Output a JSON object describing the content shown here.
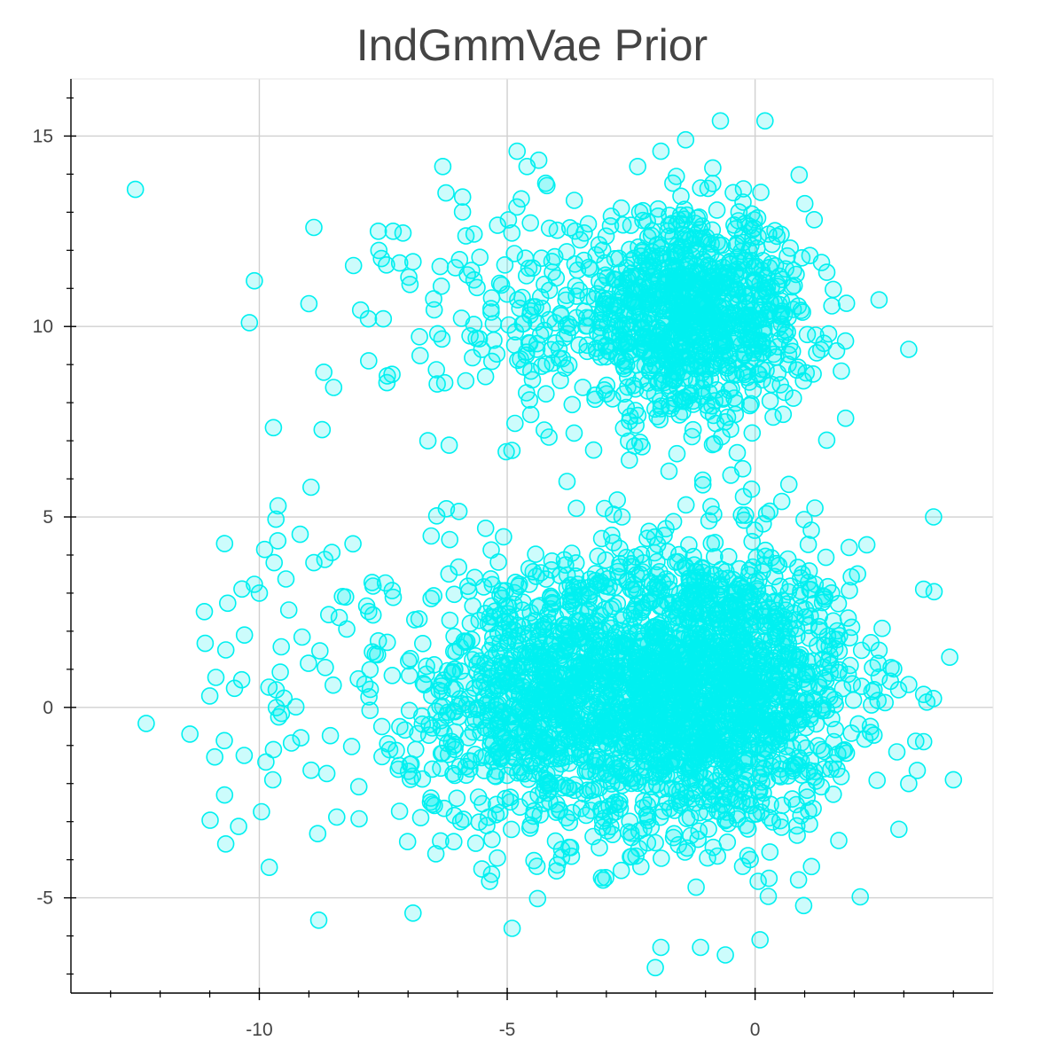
{
  "chart_data": {
    "type": "scatter",
    "title": "IndGmmVae Prior",
    "xlabel": "",
    "ylabel": "",
    "xlim": [
      -13.8,
      4.8
    ],
    "ylim": [
      -7.5,
      16.5
    ],
    "x_ticks": [
      -10,
      -5,
      0
    ],
    "y_ticks": [
      -5,
      0,
      5,
      10,
      15
    ],
    "x_tick_labels": [
      "-10",
      "-5",
      "0"
    ],
    "y_tick_labels": [
      "-5",
      "0",
      "5",
      "10",
      "15"
    ],
    "grid": true,
    "marker": {
      "shape": "circle",
      "fill": "#00f0f0",
      "fill_opacity": 0.2,
      "stroke": "#00f0f0"
    },
    "clusters": [
      {
        "center": [
          -1.2,
          0.5
        ],
        "std": [
          1.6,
          1.9
        ],
        "count": 1900
      },
      {
        "center": [
          -4.5,
          0.2
        ],
        "std": [
          1.3,
          1.8
        ],
        "count": 650
      },
      {
        "center": [
          -1.3,
          10.3
        ],
        "std": [
          1.2,
          1.3
        ],
        "count": 950
      },
      {
        "center": [
          -4.3,
          10.0
        ],
        "std": [
          1.5,
          1.8
        ],
        "count": 160
      },
      {
        "center": [
          -8.5,
          0.8
        ],
        "std": [
          1.5,
          2.4
        ],
        "count": 90
      }
    ],
    "outliers": [
      [
        -12.5,
        13.6
      ],
      [
        -10.1,
        11.2
      ],
      [
        -10.2,
        10.1
      ],
      [
        -9,
        10.6
      ],
      [
        -8.9,
        12.6
      ],
      [
        -8.1,
        11.6
      ],
      [
        -7.6,
        12.5
      ],
      [
        -7.3,
        12.5
      ],
      [
        -6.9,
        11.7
      ],
      [
        -7.8,
        10.2
      ],
      [
        -7.5,
        10.2
      ],
      [
        -8.7,
        8.8
      ],
      [
        -8.5,
        8.4
      ],
      [
        -6.6,
        7.0
      ],
      [
        -6.3,
        14.2
      ],
      [
        -5.9,
        13.4
      ],
      [
        -4.8,
        14.6
      ],
      [
        -4.6,
        14.2
      ],
      [
        -4.2,
        13.7
      ],
      [
        -0.7,
        15.4
      ],
      [
        0.2,
        15.4
      ],
      [
        -1.4,
        14.9
      ],
      [
        -1.9,
        14.6
      ],
      [
        3.1,
        9.4
      ],
      [
        2.5,
        10.7
      ],
      [
        -10.7,
        4.3
      ],
      [
        -9.7,
        3.8
      ],
      [
        -8.9,
        3.8
      ],
      [
        -10,
        3.0
      ],
      [
        -10.3,
        1.9
      ],
      [
        -11,
        0.3
      ],
      [
        -10.5,
        0.5
      ],
      [
        -11.4,
        -0.7
      ],
      [
        -10.9,
        -1.3
      ],
      [
        -10.7,
        -2.3
      ],
      [
        -9.8,
        -4.2
      ],
      [
        -6.9,
        -5.4
      ],
      [
        -4.9,
        -5.8
      ],
      [
        -1.9,
        -6.3
      ],
      [
        -1.1,
        -6.3
      ],
      [
        -0.6,
        -6.5
      ],
      [
        0.1,
        -6.1
      ],
      [
        3.6,
        5.0
      ],
      [
        3.4,
        3.1
      ],
      [
        3.4,
        -0.9
      ],
      [
        4.0,
        -1.9
      ],
      [
        3.1,
        -2.0
      ],
      [
        2.9,
        -3.2
      ],
      [
        2.5,
        1.5
      ],
      [
        3.1,
        0.6
      ]
    ]
  }
}
